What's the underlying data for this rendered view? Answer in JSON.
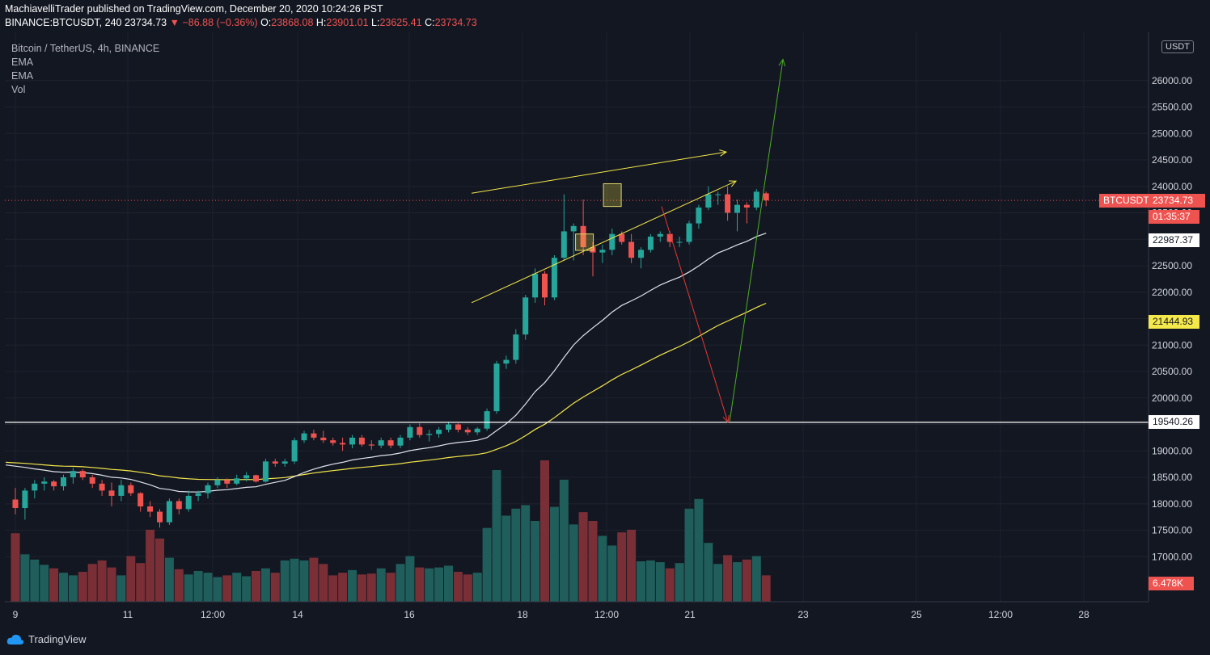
{
  "header": {
    "publisher": "MachiavelliTrader published on TradingView.com, December 20, 2020 10:24:26 PST",
    "symbol": "BINANCE:BTCUSDT, 240",
    "last": "23734.73",
    "change": "−86.88 (−0.36%)",
    "o_label": "O:",
    "o": "23868.08",
    "h_label": "H:",
    "h": "23901.01",
    "l_label": "L:",
    "l": "23625.41",
    "c_label": "C:",
    "c": "23734.73"
  },
  "legend": {
    "title": "Bitcoin / TetherUS, 4h, BINANCE",
    "ema1": "EMA",
    "ema2": "EMA",
    "vol": "Vol"
  },
  "currency": "USDT",
  "price_tags": {
    "symbol_label": "BTCUSDT",
    "last_price": "23734.73",
    "countdown": "01:35:37",
    "ema_fast": "22987.37",
    "ema_slow": "21444.93",
    "hline": "19540.26",
    "volume": "6.478K"
  },
  "colors": {
    "bg": "#131722",
    "up": "#26a69a",
    "down": "#ef5350",
    "ema_fast": "#e0e3eb",
    "ema_slow": "#f5e84a",
    "wedge": "#f5e84a",
    "arrow_down": "#e53935",
    "arrow_up": "#4caf24"
  },
  "footer": {
    "brand": "TradingView"
  },
  "chart_data": {
    "type": "candlestick",
    "x_ticks": [
      "9",
      "11",
      "12:00",
      "14",
      "16",
      "18",
      "12:00",
      "21",
      "23",
      "25",
      "12:00",
      "28"
    ],
    "y_ticks": [
      17000,
      17500,
      18000,
      18500,
      19000,
      19500,
      20000,
      20500,
      21000,
      21500,
      22000,
      22500,
      23000,
      23500,
      24000,
      24500,
      25000,
      25500,
      26000
    ],
    "ylim": [
      16600,
      26600
    ],
    "horizontal_line": 19540.26,
    "candles": [
      [
        18080,
        18300,
        17800,
        17920
      ],
      [
        17920,
        18300,
        17700,
        18250
      ],
      [
        18250,
        18450,
        18100,
        18380
      ],
      [
        18380,
        18500,
        18250,
        18420
      ],
      [
        18420,
        18450,
        18250,
        18330
      ],
      [
        18330,
        18550,
        18250,
        18500
      ],
      [
        18500,
        18680,
        18380,
        18620
      ],
      [
        18620,
        18650,
        18450,
        18500
      ],
      [
        18500,
        18550,
        18300,
        18380
      ],
      [
        18380,
        18450,
        18150,
        18250
      ],
      [
        18250,
        18400,
        17950,
        18150
      ],
      [
        18150,
        18450,
        18050,
        18350
      ],
      [
        18350,
        18400,
        18150,
        18200
      ],
      [
        18200,
        18220,
        17850,
        17950
      ],
      [
        17950,
        18050,
        17750,
        17850
      ],
      [
        17850,
        17900,
        17550,
        17650
      ],
      [
        17650,
        18100,
        17600,
        18050
      ],
      [
        18050,
        18100,
        17800,
        17900
      ],
      [
        17900,
        18250,
        17850,
        18150
      ],
      [
        18150,
        18250,
        18050,
        18200
      ],
      [
        18200,
        18400,
        18100,
        18350
      ],
      [
        18350,
        18500,
        18300,
        18450
      ],
      [
        18450,
        18480,
        18300,
        18380
      ],
      [
        18380,
        18550,
        18350,
        18480
      ],
      [
        18480,
        18600,
        18420,
        18540
      ],
      [
        18540,
        18550,
        18400,
        18420
      ],
      [
        18420,
        18850,
        18400,
        18800
      ],
      [
        18800,
        18850,
        18700,
        18760
      ],
      [
        18760,
        18850,
        18700,
        18800
      ],
      [
        18800,
        19250,
        18750,
        19200
      ],
      [
        19200,
        19380,
        19150,
        19330
      ],
      [
        19330,
        19400,
        19200,
        19250
      ],
      [
        19250,
        19380,
        19150,
        19200
      ],
      [
        19200,
        19250,
        19100,
        19150
      ],
      [
        19150,
        19250,
        19000,
        19120
      ],
      [
        19120,
        19300,
        19050,
        19250
      ],
      [
        19250,
        19300,
        19080,
        19120
      ],
      [
        19120,
        19200,
        19020,
        19100
      ],
      [
        19100,
        19250,
        19050,
        19200
      ],
      [
        19200,
        19250,
        19050,
        19100
      ],
      [
        19100,
        19300,
        19050,
        19250
      ],
      [
        19250,
        19500,
        19200,
        19450
      ],
      [
        19450,
        19520,
        19250,
        19300
      ],
      [
        19300,
        19400,
        19180,
        19320
      ],
      [
        19320,
        19450,
        19250,
        19400
      ],
      [
        19400,
        19550,
        19350,
        19500
      ],
      [
        19500,
        19520,
        19350,
        19400
      ],
      [
        19400,
        19450,
        19300,
        19350
      ],
      [
        19350,
        19450,
        19300,
        19420
      ],
      [
        19420,
        19800,
        19380,
        19750
      ],
      [
        19750,
        20700,
        19700,
        20650
      ],
      [
        20650,
        20800,
        20550,
        20720
      ],
      [
        20720,
        21300,
        20650,
        21200
      ],
      [
        21200,
        21950,
        21100,
        21900
      ],
      [
        21900,
        22450,
        21800,
        22350
      ],
      [
        22350,
        22400,
        21750,
        21900
      ],
      [
        21900,
        22700,
        21850,
        22650
      ],
      [
        22650,
        23850,
        22600,
        23150
      ],
      [
        23150,
        23300,
        22600,
        23250
      ],
      [
        23250,
        23750,
        22700,
        22850
      ],
      [
        22850,
        22950,
        22300,
        22750
      ],
      [
        22750,
        22900,
        22550,
        22800
      ],
      [
        22800,
        23200,
        22700,
        23100
      ],
      [
        23100,
        23150,
        22900,
        22950
      ],
      [
        22950,
        23100,
        22550,
        22650
      ],
      [
        22650,
        22850,
        22450,
        22800
      ],
      [
        22800,
        23100,
        22750,
        23050
      ],
      [
        23050,
        23150,
        22950,
        23100
      ],
      [
        23100,
        23150,
        22850,
        22950
      ],
      [
        22950,
        23050,
        22850,
        22950
      ],
      [
        22950,
        23350,
        22900,
        23300
      ],
      [
        23300,
        23650,
        23200,
        23600
      ],
      [
        23600,
        24000,
        23550,
        23850
      ],
      [
        23850,
        23900,
        23650,
        23850
      ],
      [
        23850,
        24000,
        23350,
        23500
      ],
      [
        23500,
        23750,
        23150,
        23650
      ],
      [
        23650,
        23700,
        23300,
        23600
      ],
      [
        23600,
        23950,
        23550,
        23900
      ],
      [
        23868.08,
        23901.01,
        23625.41,
        23734.73
      ]
    ],
    "volume": [
      780,
      540,
      480,
      420,
      380,
      330,
      300,
      340,
      430,
      470,
      390,
      300,
      520,
      440,
      820,
      720,
      500,
      370,
      310,
      350,
      330,
      280,
      300,
      330,
      290,
      350,
      380,
      330,
      470,
      490,
      470,
      500,
      430,
      300,
      330,
      360,
      310,
      320,
      380,
      330,
      430,
      520,
      390,
      380,
      390,
      410,
      340,
      310,
      330,
      840,
      1500,
      980,
      1060,
      1100,
      920,
      1610,
      1080,
      1390,
      880,
      1020,
      920,
      750,
      640,
      790,
      820,
      460,
      470,
      450,
      380,
      440,
      1060,
      1170,
      670,
      430,
      530,
      450,
      480,
      520,
      300
    ]
  }
}
